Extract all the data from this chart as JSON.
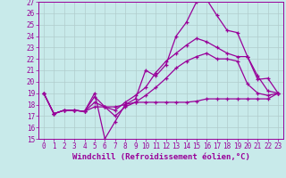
{
  "xlabel": "Windchill (Refroidissement éolien,°C)",
  "background_color": "#c8eaea",
  "grid_color": "#b0cccc",
  "line_color": "#990099",
  "xlim": [
    -0.5,
    23.5
  ],
  "ylim": [
    15,
    27
  ],
  "xticks": [
    0,
    1,
    2,
    3,
    4,
    5,
    6,
    7,
    8,
    9,
    10,
    11,
    12,
    13,
    14,
    15,
    16,
    17,
    18,
    19,
    20,
    21,
    22,
    23
  ],
  "yticks": [
    15,
    16,
    17,
    18,
    19,
    20,
    21,
    22,
    23,
    24,
    25,
    26,
    27
  ],
  "lines": [
    [
      19.0,
      17.2,
      17.5,
      17.5,
      17.4,
      19.0,
      15.0,
      16.5,
      18.0,
      18.5,
      21.0,
      20.5,
      21.5,
      24.0,
      25.2,
      27.0,
      27.2,
      25.8,
      24.5,
      24.3,
      22.2,
      20.5,
      19.2,
      19.0
    ],
    [
      19.0,
      17.2,
      17.5,
      17.5,
      17.4,
      18.7,
      17.8,
      17.5,
      18.2,
      18.8,
      19.5,
      20.8,
      21.8,
      22.5,
      23.2,
      23.8,
      23.5,
      23.0,
      22.5,
      22.2,
      22.2,
      20.2,
      20.3,
      19.0
    ],
    [
      19.0,
      17.2,
      17.5,
      17.5,
      17.4,
      18.2,
      17.8,
      17.0,
      17.8,
      18.2,
      18.8,
      19.5,
      20.3,
      21.2,
      21.8,
      22.2,
      22.5,
      22.0,
      22.0,
      21.8,
      19.8,
      19.0,
      18.8,
      19.0
    ],
    [
      19.0,
      17.2,
      17.5,
      17.5,
      17.4,
      17.8,
      17.8,
      17.8,
      18.0,
      18.2,
      18.2,
      18.2,
      18.2,
      18.2,
      18.2,
      18.3,
      18.5,
      18.5,
      18.5,
      18.5,
      18.5,
      18.5,
      18.5,
      19.0
    ]
  ],
  "font_family": "monospace",
  "tick_fontsize": 5.5,
  "label_fontsize": 6.5
}
